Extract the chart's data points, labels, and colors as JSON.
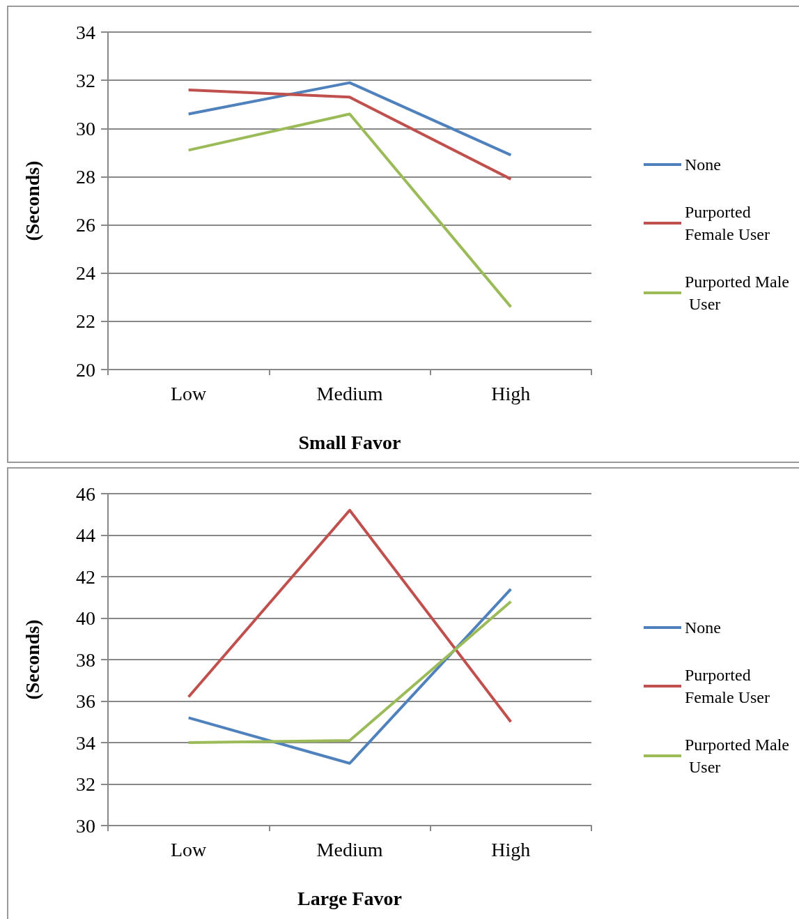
{
  "chart_data": [
    {
      "type": "line",
      "xlabel": "Small Favor",
      "ylabel": "(Seconds)",
      "categories": [
        "Low",
        "Medium",
        "High"
      ],
      "series": [
        {
          "name": "None",
          "color": "#4f81bd",
          "values": [
            30.6,
            31.9,
            28.9
          ]
        },
        {
          "name": "Purported Female User",
          "color": "#c0504d",
          "values": [
            31.6,
            31.3,
            27.9
          ]
        },
        {
          "name": "Purported Male User",
          "color": "#9bbb59",
          "values": [
            29.1,
            30.6,
            22.6
          ]
        }
      ],
      "ylim": [
        20,
        34
      ],
      "yticks": [
        20,
        22,
        24,
        26,
        28,
        30,
        32,
        34
      ],
      "grid": "y",
      "legend": "right",
      "marker": "none"
    },
    {
      "type": "line",
      "xlabel": "Large Favor",
      "ylabel": "(Seconds)",
      "categories": [
        "Low",
        "Medium",
        "High"
      ],
      "series": [
        {
          "name": "None",
          "color": "#4f81bd",
          "values": [
            35.2,
            33.0,
            41.4
          ]
        },
        {
          "name": "Purported Female User",
          "color": "#c0504d",
          "values": [
            36.2,
            45.2,
            35.0
          ]
        },
        {
          "name": "Purported Male User",
          "color": "#9bbb59",
          "values": [
            34.0,
            34.1,
            40.8
          ]
        }
      ],
      "ylim": [
        30,
        46
      ],
      "yticks": [
        30,
        32,
        34,
        36,
        38,
        40,
        42,
        44,
        46
      ],
      "grid": "y",
      "legend": "right",
      "marker": "none"
    }
  ]
}
